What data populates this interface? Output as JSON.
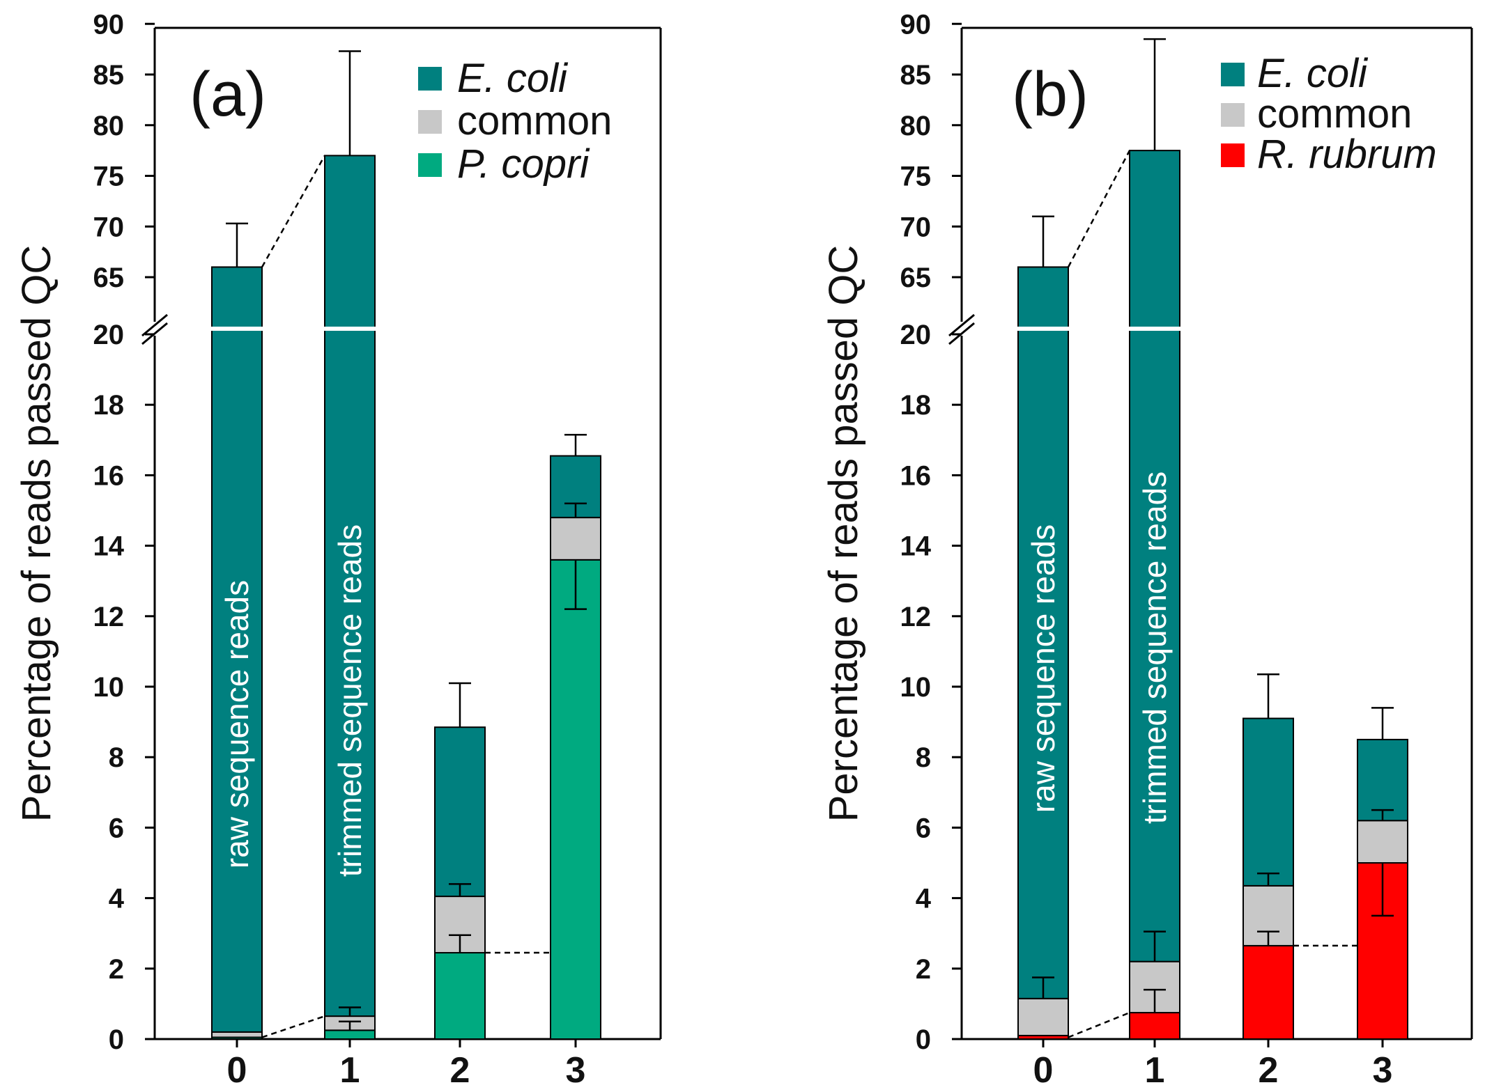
{
  "colors": {
    "ecoli": "#00807f",
    "common": "#c8c8c8",
    "pcopri": "#00aa80",
    "rrubrum": "#ff0000"
  },
  "chart_data": [
    {
      "type": "bar",
      "stacked": true,
      "panel_label": "(a)",
      "ylabel": "Percentage of reads passed QC",
      "categories": [
        "0",
        "1",
        "2",
        "3"
      ],
      "axis_break": {
        "lower_max": 20,
        "upper_min": 65
      },
      "lower_ticks": [
        "0",
        "2",
        "4",
        "6",
        "8",
        "10",
        "12",
        "14",
        "16",
        "18",
        "20"
      ],
      "upper_ticks": [
        "65",
        "70",
        "75",
        "80",
        "85",
        "90"
      ],
      "legend": [
        {
          "label": "E. coli",
          "color_key": "ecoli",
          "italic": true
        },
        {
          "label": "common",
          "color_key": "common",
          "italic": false
        },
        {
          "label": "P. copri",
          "color_key": "pcopri",
          "italic": true
        }
      ],
      "series": [
        {
          "name": "P. copri",
          "color_key": "pcopri",
          "values": [
            0.05,
            0.25,
            2.45,
            13.6
          ]
        },
        {
          "name": "common",
          "color_key": "common",
          "values": [
            0.15,
            0.4,
            1.6,
            1.2
          ]
        },
        {
          "name": "E. coli",
          "color_key": "ecoli",
          "values": [
            65.8,
            76.35,
            4.8,
            1.75
          ]
        }
      ],
      "totals": [
        66.0,
        77.0,
        8.85,
        16.55
      ],
      "errors": [
        {
          "at": 66.0,
          "top": 70.3
        },
        {
          "at": 77.0,
          "top": 87.3
        },
        {
          "at": 8.85,
          "top": 10.1
        },
        {
          "at": 16.55,
          "top": 17.15
        },
        {
          "at": 0.65,
          "top": 0.9
        },
        {
          "at": 0.25,
          "top": 0.5
        },
        {
          "at": 4.05,
          "top": 4.4
        },
        {
          "at": 2.45,
          "top": 2.95
        },
        {
          "at": 14.8,
          "top": 15.2
        },
        {
          "at": 13.6,
          "bottom": 12.2
        }
      ],
      "bar_annotations": [
        {
          "bar": 0,
          "text": "raw sequence reads"
        },
        {
          "bar": 1,
          "text": "trimmed sequence reads"
        }
      ]
    },
    {
      "type": "bar",
      "stacked": true,
      "panel_label": "(b)",
      "ylabel": "Percentage of reads passed QC",
      "categories": [
        "0",
        "1",
        "2",
        "3"
      ],
      "axis_break": {
        "lower_max": 20,
        "upper_min": 65
      },
      "lower_ticks": [
        "0",
        "2",
        "4",
        "6",
        "8",
        "10",
        "12",
        "14",
        "16",
        "18",
        "20"
      ],
      "upper_ticks": [
        "65",
        "70",
        "75",
        "80",
        "85",
        "90"
      ],
      "legend": [
        {
          "label": "E. coli",
          "color_key": "ecoli",
          "italic": true
        },
        {
          "label": "common",
          "color_key": "common",
          "italic": false
        },
        {
          "label": "R. rubrum",
          "color_key": "rrubrum",
          "italic": true
        }
      ],
      "series": [
        {
          "name": "R. rubrum",
          "color_key": "rrubrum",
          "values": [
            0.1,
            0.75,
            2.65,
            5.0
          ]
        },
        {
          "name": "common",
          "color_key": "common",
          "values": [
            1.05,
            1.45,
            1.7,
            1.2
          ]
        },
        {
          "name": "E. coli",
          "color_key": "ecoli",
          "values": [
            64.85,
            75.3,
            4.75,
            2.3
          ]
        }
      ],
      "totals": [
        66.0,
        77.5,
        9.1,
        8.5
      ],
      "errors": [
        {
          "at": 66.0,
          "top": 71.0
        },
        {
          "at": 77.5,
          "top": 88.5
        },
        {
          "at": 9.1,
          "top": 10.35
        },
        {
          "at": 8.5,
          "top": 9.4
        },
        {
          "at": 1.15,
          "top": 1.75
        },
        {
          "at": 2.2,
          "top": 3.05
        },
        {
          "at": 0.75,
          "top": 1.4
        },
        {
          "at": 4.35,
          "top": 4.7
        },
        {
          "at": 2.65,
          "top": 3.05
        },
        {
          "at": 6.2,
          "top": 6.5
        },
        {
          "at": 5.0,
          "bottom": 3.5
        }
      ],
      "bar_annotations": [
        {
          "bar": 0,
          "text": "raw sequence reads"
        },
        {
          "bar": 1,
          "text": "trimmed sequence reads"
        }
      ]
    }
  ]
}
